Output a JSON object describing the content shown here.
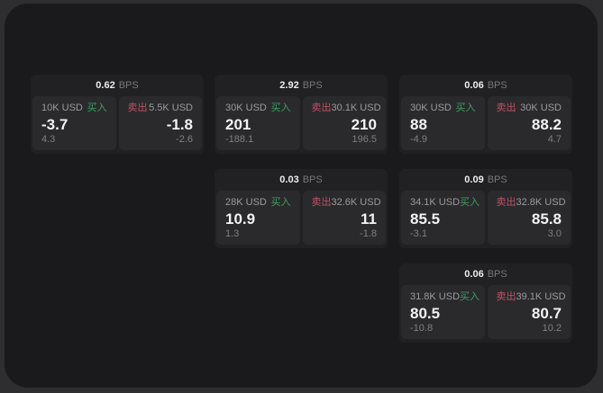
{
  "labels": {
    "buy": "买入",
    "sell": "卖出",
    "bps_suffix": "BPS"
  },
  "colors": {
    "buy_green": "#3f9f61",
    "sell_red": "#c25064",
    "panel_bg": "#1a1a1c",
    "card_bg": "#212124",
    "tile_bg": "#2a2a2d",
    "price_text": "#f2f2f4",
    "muted_text": "#9b9b9f"
  },
  "cards": [
    {
      "bps": "0.62",
      "buy": {
        "size": "10K USD",
        "price": "-3.7",
        "delta": "4.3"
      },
      "sell": {
        "size": "5.5K USD",
        "price": "-1.8",
        "delta": "-2.6"
      }
    },
    {
      "bps": "2.92",
      "buy": {
        "size": "30K USD",
        "price": "201",
        "delta": "-188.1"
      },
      "sell": {
        "size": "30.1K USD",
        "price": "210",
        "delta": "196.5"
      }
    },
    {
      "bps": "0.06",
      "buy": {
        "size": "30K USD",
        "price": "88",
        "delta": "-4.9"
      },
      "sell": {
        "size": "30K USD",
        "price": "88.2",
        "delta": "4.7"
      }
    },
    {
      "bps": "0.03",
      "buy": {
        "size": "28K USD",
        "price": "10.9",
        "delta": "1.3"
      },
      "sell": {
        "size": "32.6K USD",
        "price": "11",
        "delta": "-1.8"
      }
    },
    {
      "bps": "0.09",
      "buy": {
        "size": "34.1K USD",
        "price": "85.5",
        "delta": "-3.1"
      },
      "sell": {
        "size": "32.8K USD",
        "price": "85.8",
        "delta": "3.0"
      }
    },
    {
      "bps": "0.06",
      "buy": {
        "size": "31.8K USD",
        "price": "80.5",
        "delta": "-10.8"
      },
      "sell": {
        "size": "39.1K USD",
        "price": "80.7",
        "delta": "10.2"
      }
    }
  ]
}
